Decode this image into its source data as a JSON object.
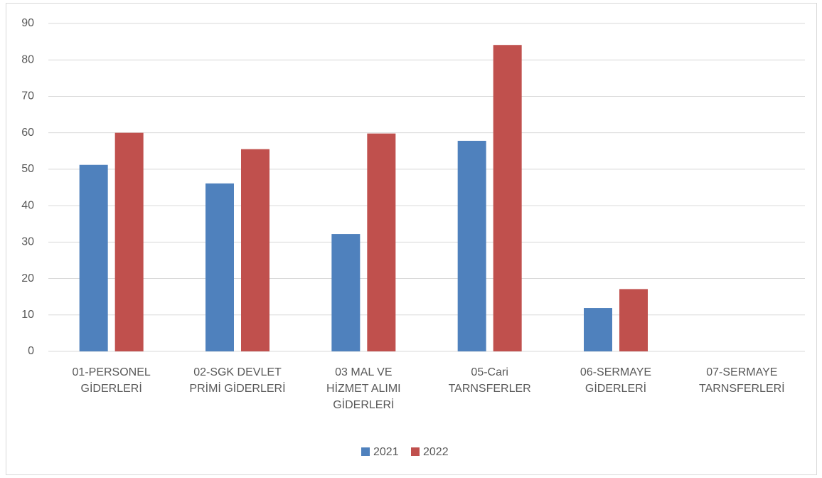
{
  "chart_data": {
    "type": "bar",
    "categories": [
      "01-PERSONEL\nGİDERLERİ",
      "02-SGK DEVLET\nPRİMİ GİDERLERİ",
      "03 MAL VE\nHİZMET ALIMI\nGİDERLERİ",
      "05-Cari\nTARNSFERLER",
      "06-SERMAYE\nGİDERLERİ",
      "07-SERMAYE\nTARNSFERLERİ"
    ],
    "series": [
      {
        "name": "2021",
        "color": "#4f81bd",
        "values": [
          51.2,
          46.1,
          32.2,
          57.8,
          11.9,
          0
        ]
      },
      {
        "name": "2022",
        "color": "#c0504d",
        "values": [
          60,
          55.5,
          59.8,
          84.1,
          17.1,
          0
        ]
      }
    ],
    "ylim": [
      0,
      90
    ],
    "yticks": [
      0,
      10,
      20,
      30,
      40,
      50,
      60,
      70,
      80,
      90
    ],
    "grid": true,
    "legend": "bottom"
  }
}
